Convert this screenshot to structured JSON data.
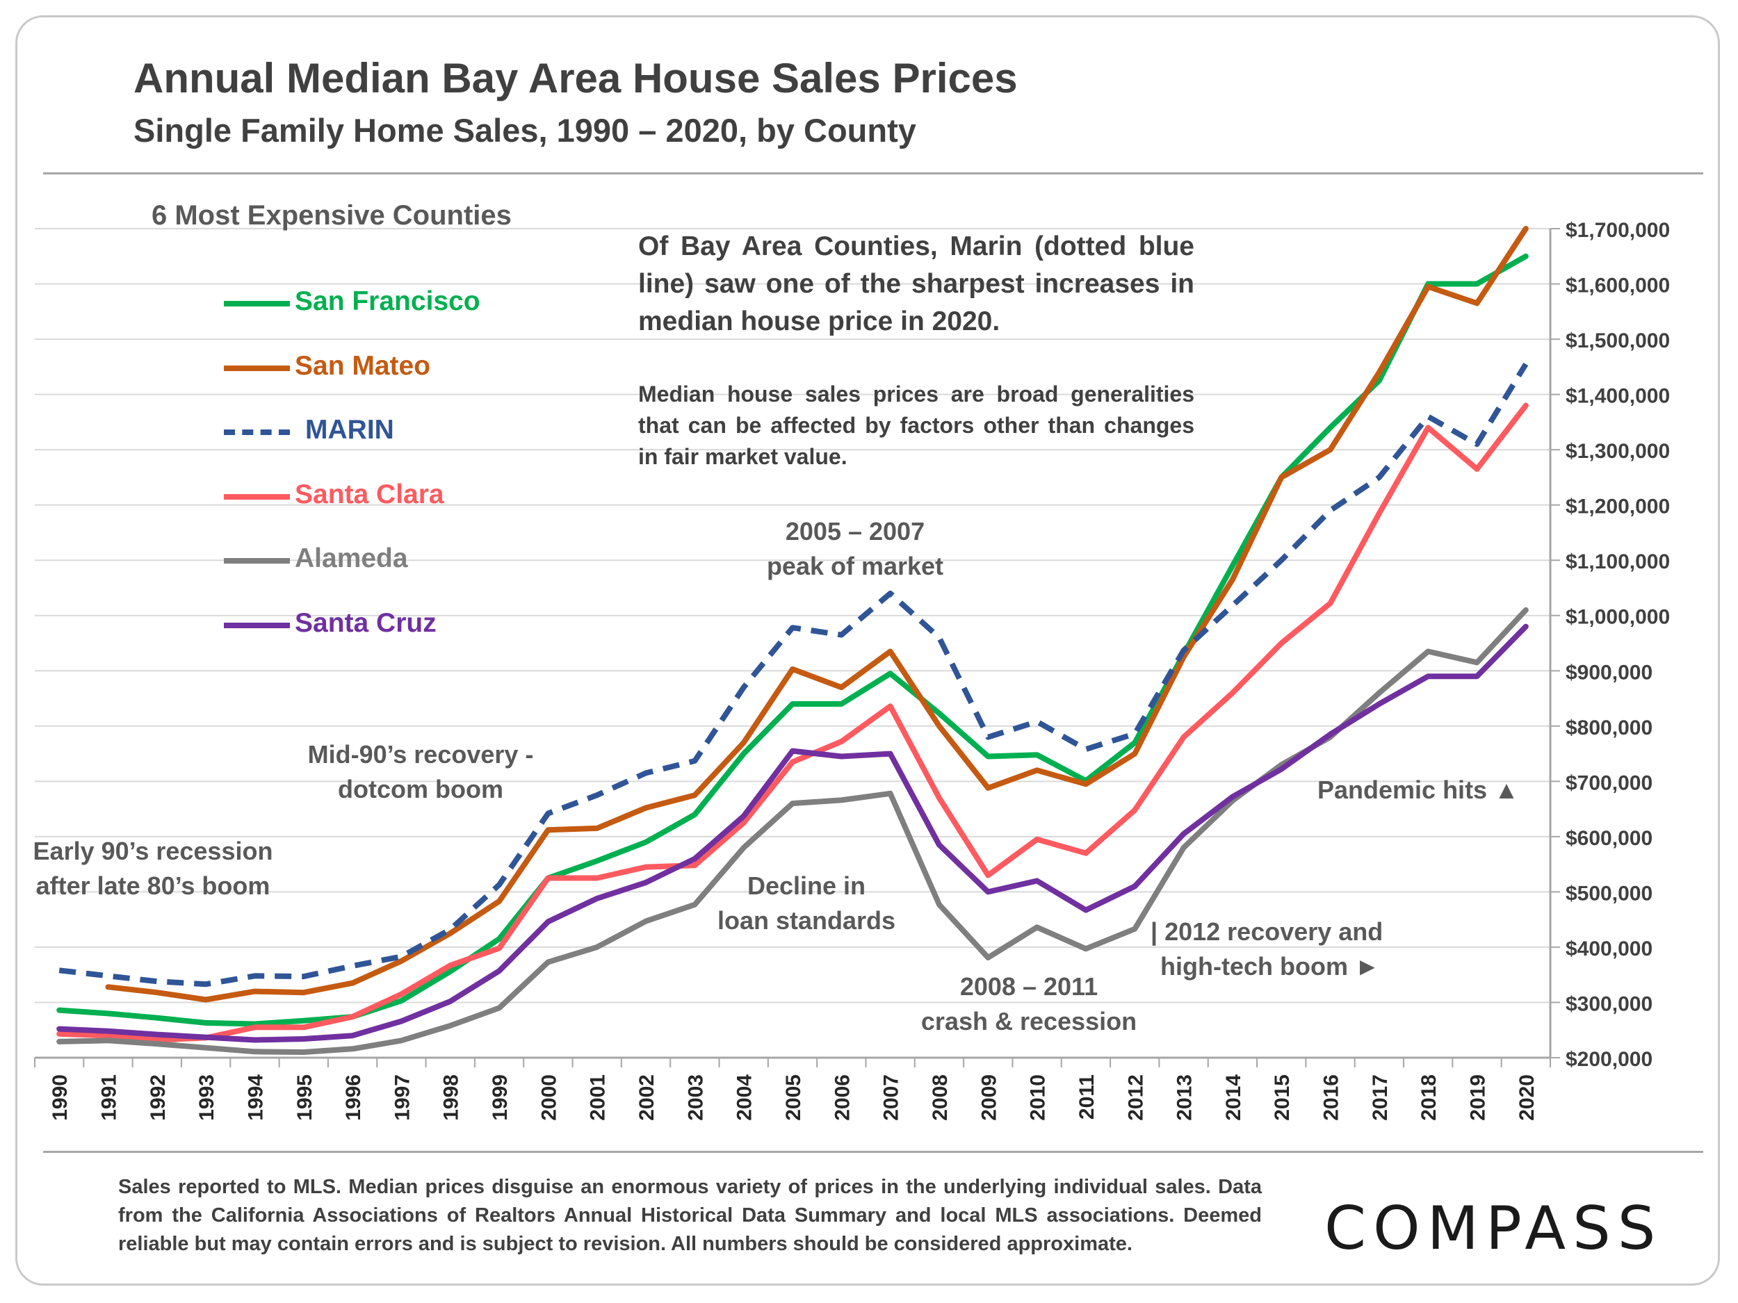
{
  "header": {
    "title": "Annual Median Bay Area House Sales Prices",
    "subtitle": "Single Family Home Sales, 1990 – 2020, by County"
  },
  "legend": {
    "title": "6 Most Expensive Counties"
  },
  "notes": {
    "main": "Of Bay Area Counties, Marin (dotted blue line) saw one of the sharpest increases in median house price in 2020.",
    "caveat": "Median house sales prices are broad generalities that can be affected by factors other than changes in fair market value."
  },
  "annotations": {
    "early90s_line1": "Early 90’s recession",
    "early90s_line2": "after late 80’s boom",
    "mid90s_line1": "Mid-90’s recovery -",
    "mid90s_line2": "dotcom boom",
    "peak_line1": "2005 – 2007",
    "peak_line2": "peak of market",
    "decline_line1": "Decline in",
    "decline_line2": "loan standards",
    "crash_line1": "2008 – 2011",
    "crash_line2": "crash & recession",
    "recovery_line1": "| 2012 recovery and",
    "recovery_line2": "high-tech boom ►",
    "pandemic": "Pandemic hits ▲"
  },
  "footer": {
    "text": "Sales reported to MLS. Median prices disguise an enormous variety of prices in the underlying individual sales. Data from the California Associations of Realtors Annual Historical Data Summary and local MLS associations. Deemed reliable but may contain errors and is subject to revision. All numbers should be considered approximate."
  },
  "brand": {
    "logo_text": "COMPASS"
  },
  "colors": {
    "san_francisco": "#00b050",
    "san_mateo": "#c55a11",
    "marin": "#2f5597",
    "santa_clara": "#ff5a5f",
    "alameda": "#7f7f7f",
    "santa_cruz": "#7030a0",
    "gridline": "#d9d9d9",
    "axis": "#a6a6a6"
  },
  "chart_data": {
    "type": "line",
    "title": "Annual Median Bay Area House Sales Prices",
    "subtitle": "Single Family Home Sales, 1990 – 2020, by County",
    "x": [
      1990,
      1991,
      1992,
      1993,
      1994,
      1995,
      1996,
      1997,
      1998,
      1999,
      2000,
      2001,
      2002,
      2003,
      2004,
      2005,
      2006,
      2007,
      2008,
      2009,
      2010,
      2011,
      2012,
      2013,
      2014,
      2015,
      2016,
      2017,
      2018,
      2019,
      2020
    ],
    "x_tick_labels": [
      "1990",
      "1991",
      "1992",
      "1993",
      "1994",
      "1995",
      "1996",
      "1997",
      "1998",
      "1999",
      "2000",
      "2001",
      "2002",
      "2003",
      "2004",
      "2005",
      "2006",
      "2007",
      "2008",
      "2009",
      "2010",
      "2011",
      "2012",
      "2013",
      "2014",
      "2015",
      "2016",
      "2017",
      "2018",
      "2019",
      "2020"
    ],
    "y_axis_side": "right",
    "ylim": [
      200000,
      1700000
    ],
    "y_ticks": [
      200000,
      300000,
      400000,
      500000,
      600000,
      700000,
      800000,
      900000,
      1000000,
      1100000,
      1200000,
      1300000,
      1400000,
      1500000,
      1600000,
      1700000
    ],
    "y_tick_labels": [
      "$200,000",
      "$300,000",
      "$400,000",
      "$500,000",
      "$600,000",
      "$700,000",
      "$800,000",
      "$900,000",
      "$1,000,000",
      "$1,100,000",
      "$1,200,000",
      "$1,300,000",
      "$1,400,000",
      "$1,500,000",
      "$1,600,000",
      "$1,700,000"
    ],
    "grid": true,
    "legend_position": "left",
    "series": [
      {
        "name": "San Francisco",
        "color": "#00b050",
        "dash": false,
        "values": [
          286000,
          280000,
          272000,
          263000,
          261000,
          267000,
          274000,
          303000,
          356000,
          415000,
          525000,
          556000,
          590000,
          640000,
          750000,
          840000,
          840000,
          895000,
          823000,
          745000,
          748000,
          701000,
          770000,
          930000,
          1090000,
          1250000,
          1340000,
          1425000,
          1600000,
          1600000,
          1650000
        ]
      },
      {
        "name": "San Mateo",
        "color": "#c55a11",
        "dash": false,
        "values": [
          null,
          328000,
          318000,
          305000,
          320000,
          318000,
          335000,
          375000,
          425000,
          483000,
          612000,
          615000,
          652000,
          675000,
          770000,
          903000,
          870000,
          935000,
          800000,
          688000,
          720000,
          695000,
          750000,
          925000,
          1065000,
          1250000,
          1300000,
          1440000,
          1595000,
          1565000,
          1700000
        ]
      },
      {
        "name": "MARIN",
        "color": "#2f5597",
        "dash": true,
        "values": [
          358000,
          348000,
          338000,
          333000,
          348000,
          347000,
          366000,
          383000,
          432000,
          513000,
          642000,
          675000,
          715000,
          737000,
          870000,
          978000,
          965000,
          1040000,
          960000,
          780000,
          808000,
          758000,
          786000,
          937000,
          1018000,
          1100000,
          1190000,
          1250000,
          1360000,
          1310000,
          1455000
        ]
      },
      {
        "name": "Santa Clara",
        "color": "#ff5a5f",
        "dash": false,
        "values": [
          243000,
          240000,
          232000,
          236000,
          255000,
          255000,
          274000,
          315000,
          367000,
          398000,
          525000,
          525000,
          545000,
          548000,
          625000,
          735000,
          772000,
          836000,
          670000,
          530000,
          595000,
          570000,
          648000,
          780000,
          860000,
          950000,
          1022000,
          1185000,
          1340000,
          1265000,
          1380000
        ]
      },
      {
        "name": "Alameda",
        "color": "#7f7f7f",
        "dash": false,
        "values": [
          229000,
          231000,
          225000,
          218000,
          211000,
          210000,
          216000,
          231000,
          258000,
          290000,
          373000,
          400000,
          447000,
          477000,
          580000,
          660000,
          666000,
          678000,
          477000,
          381000,
          436000,
          397000,
          433000,
          580000,
          665000,
          730000,
          780000,
          860000,
          935000,
          915000,
          1010000
        ]
      },
      {
        "name": "Santa Cruz",
        "color": "#7030a0",
        "dash": false,
        "values": [
          252000,
          248000,
          242000,
          237000,
          232000,
          234000,
          240000,
          266000,
          302000,
          357000,
          446000,
          488000,
          517000,
          560000,
          637000,
          755000,
          745000,
          750000,
          585000,
          500000,
          520000,
          467000,
          510000,
          605000,
          672000,
          722000,
          785000,
          840000,
          890000,
          890000,
          980000
        ]
      }
    ]
  }
}
